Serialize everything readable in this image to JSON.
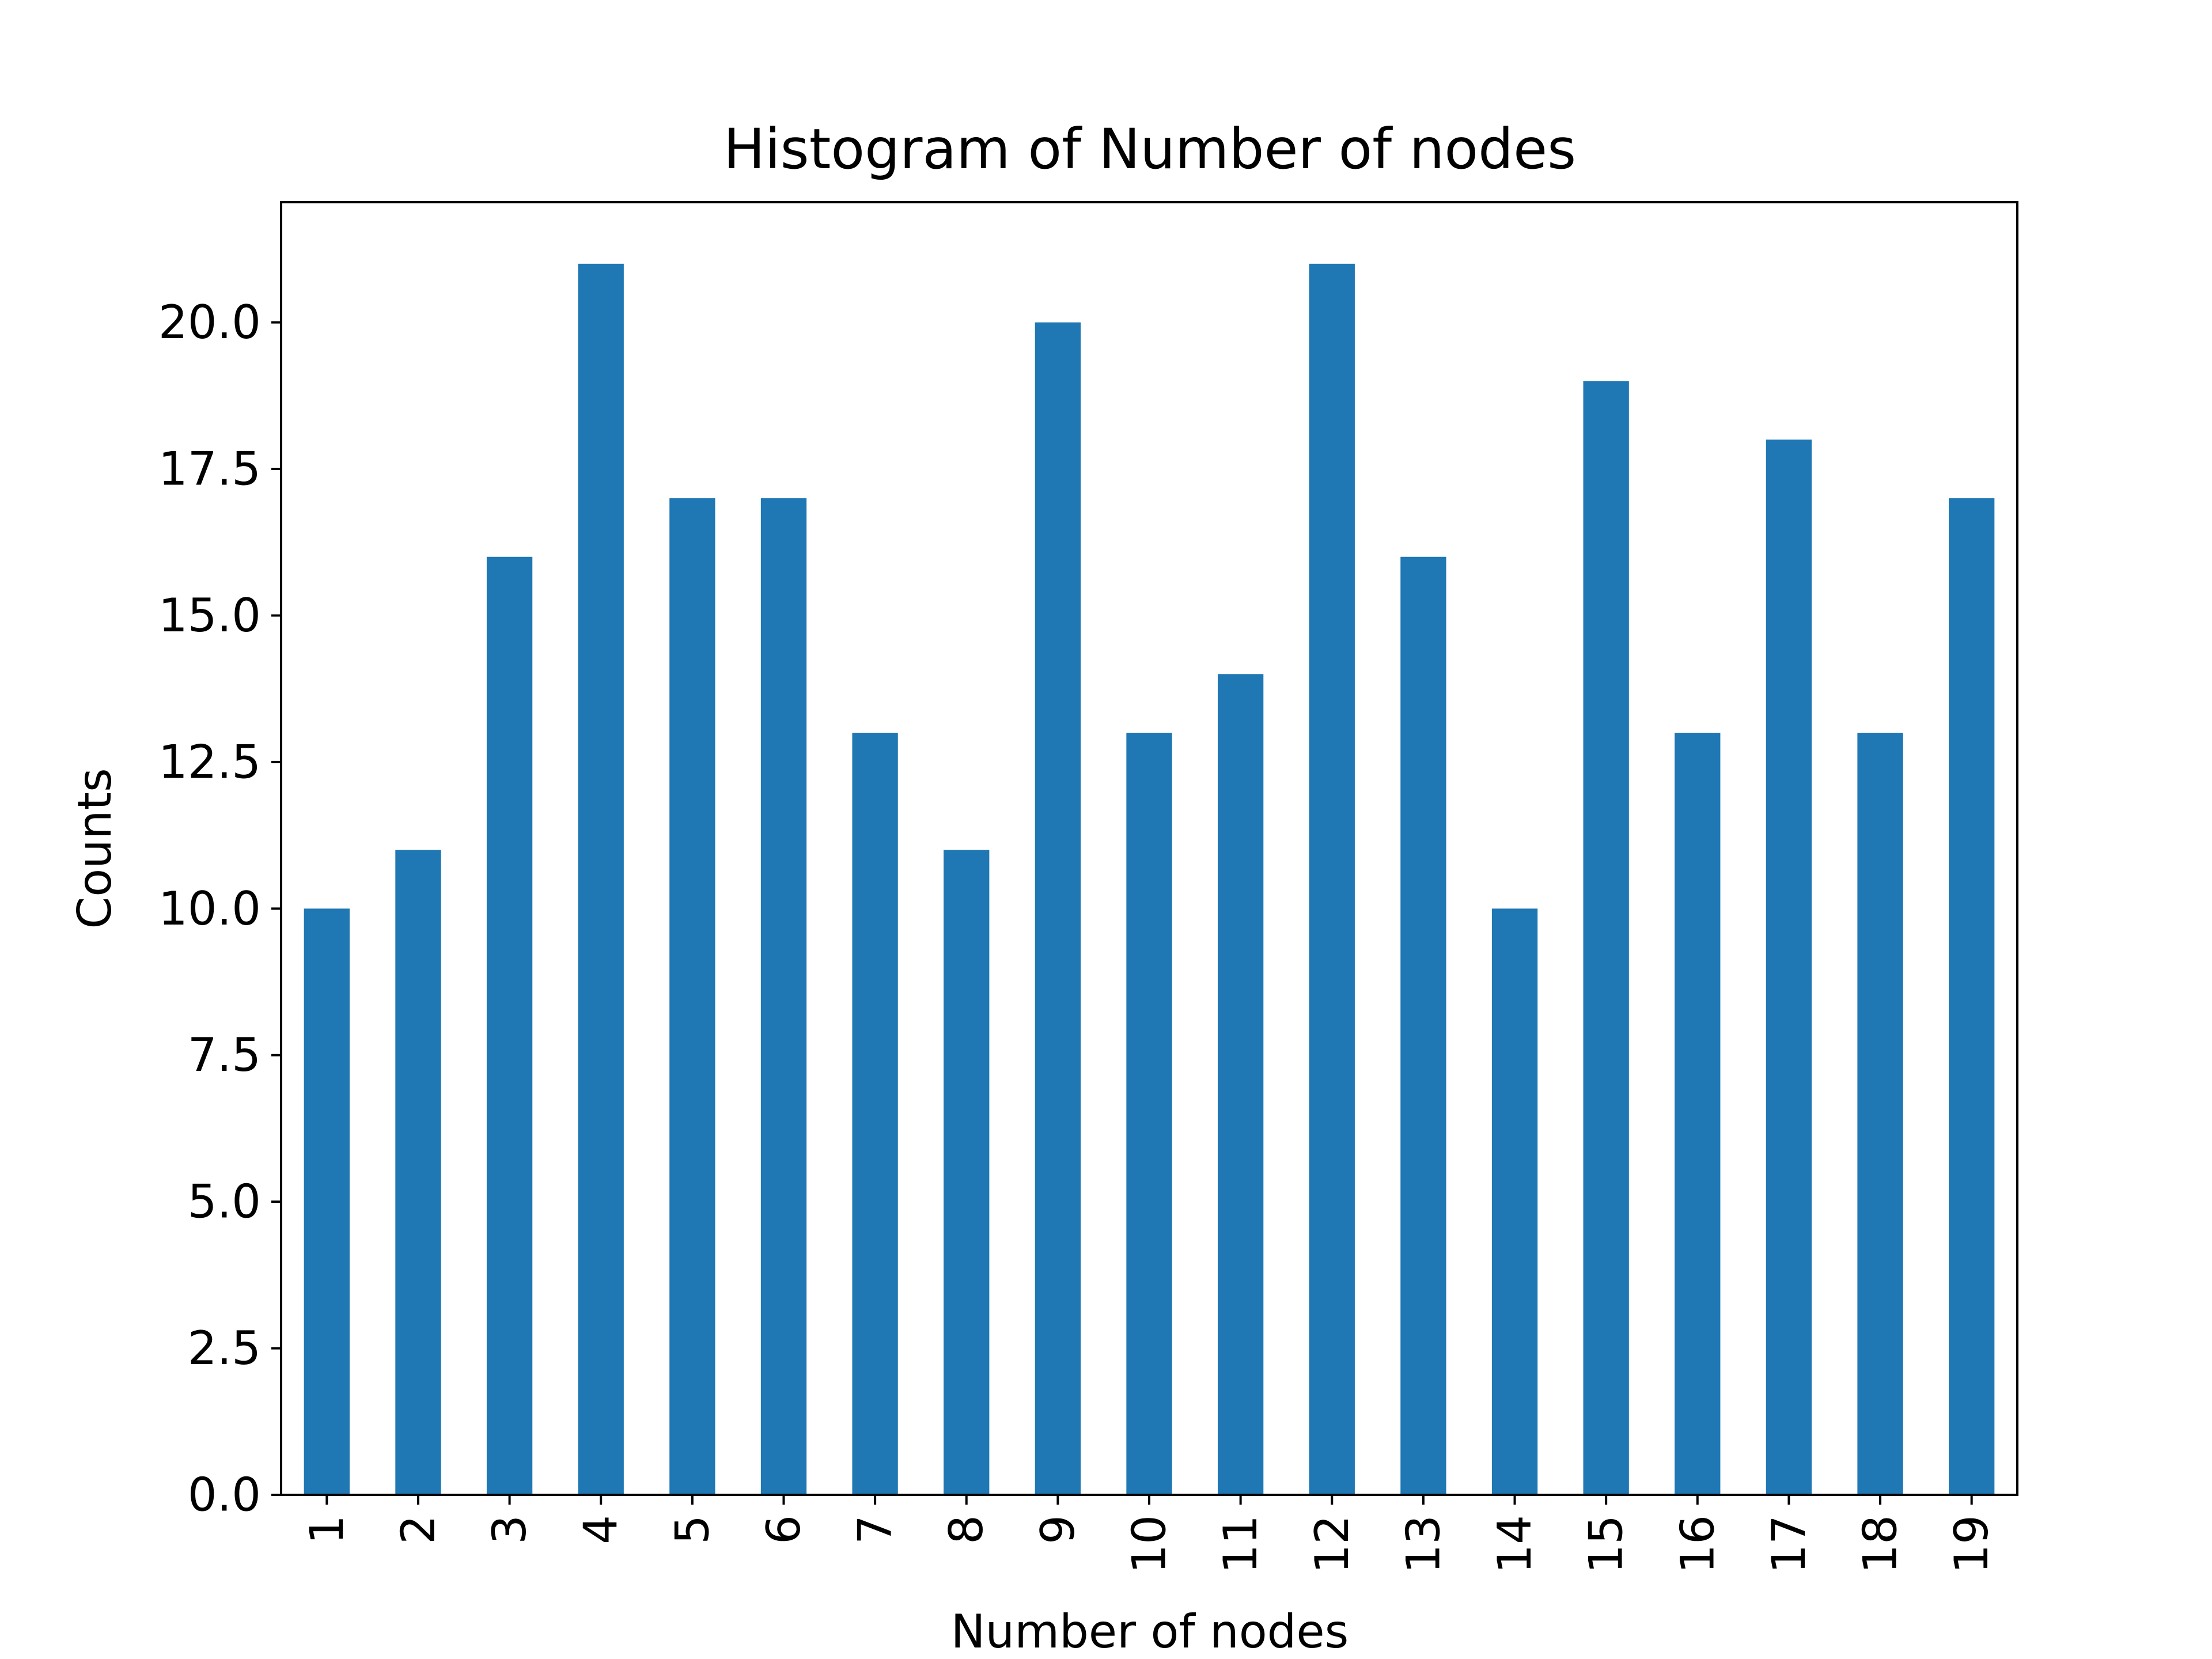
{
  "chart_data": {
    "type": "bar",
    "title": "Histogram of Number of nodes",
    "xlabel": "Number of nodes",
    "ylabel": "Counts",
    "categories": [
      "1",
      "2",
      "3",
      "4",
      "5",
      "6",
      "7",
      "8",
      "9",
      "10",
      "11",
      "12",
      "13",
      "14",
      "15",
      "16",
      "17",
      "18",
      "19"
    ],
    "values": [
      10,
      11,
      16,
      21,
      17,
      17,
      13,
      11,
      20,
      13,
      14,
      21,
      16,
      10,
      19,
      13,
      18,
      13,
      17
    ],
    "ylim": [
      0,
      22.05
    ],
    "yticks": [
      "0.0",
      "2.5",
      "5.0",
      "7.5",
      "10.0",
      "12.5",
      "15.0",
      "17.5",
      "20.0"
    ],
    "grid": false,
    "legend": "none",
    "bar_color": "#1f77b4",
    "axis_color": "#000000"
  }
}
